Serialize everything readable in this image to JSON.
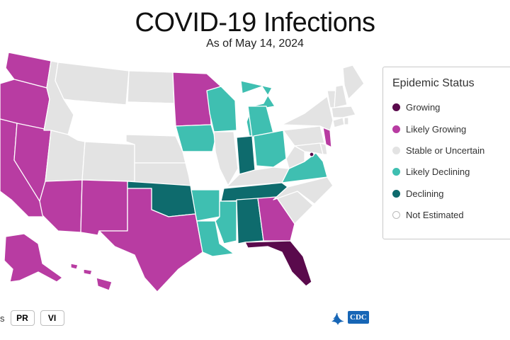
{
  "header": {
    "title": "COVID-19 Infections",
    "subtitle": "As of May 14, 2024"
  },
  "legend": {
    "title": "Epidemic Status",
    "items": [
      {
        "label": "Growing",
        "color": "#5a0a4c"
      },
      {
        "label": "Likely Growing",
        "color": "#b83ca2"
      },
      {
        "label": "Stable or Uncertain",
        "color": "#e3e3e3"
      },
      {
        "label": "Likely Declining",
        "color": "#3fbfb1"
      },
      {
        "label": "Declining",
        "color": "#0e6b6d"
      },
      {
        "label": "Not Estimated",
        "color": "#ffffff"
      }
    ]
  },
  "colors": {
    "growing": "#5a0a4c",
    "likely_growing": "#b83ca2",
    "stable": "#e3e3e3",
    "likely_declining": "#3fbfb1",
    "declining": "#0e6b6d",
    "not_estimated": "#ffffff"
  },
  "states": [
    {
      "name": "WA",
      "status": "likely_growing"
    },
    {
      "name": "OR",
      "status": "likely_growing"
    },
    {
      "name": "CA",
      "status": "likely_growing"
    },
    {
      "name": "NV",
      "status": "likely_growing"
    },
    {
      "name": "AZ",
      "status": "likely_growing"
    },
    {
      "name": "NM",
      "status": "likely_growing"
    },
    {
      "name": "TX",
      "status": "likely_growing"
    },
    {
      "name": "MN",
      "status": "likely_growing"
    },
    {
      "name": "GA",
      "status": "likely_growing"
    },
    {
      "name": "NJ",
      "status": "likely_growing"
    },
    {
      "name": "AK",
      "status": "likely_growing"
    },
    {
      "name": "HI",
      "status": "likely_growing"
    },
    {
      "name": "FL",
      "status": "growing"
    },
    {
      "name": "DC",
      "status": "growing"
    },
    {
      "name": "ID",
      "status": "stable"
    },
    {
      "name": "MT",
      "status": "stable"
    },
    {
      "name": "ND",
      "status": "stable"
    },
    {
      "name": "UT",
      "status": "stable"
    },
    {
      "name": "CO",
      "status": "stable"
    },
    {
      "name": "NE",
      "status": "stable"
    },
    {
      "name": "KS",
      "status": "stable"
    },
    {
      "name": "IL",
      "status": "stable"
    },
    {
      "name": "KY",
      "status": "stable"
    },
    {
      "name": "WV",
      "status": "stable"
    },
    {
      "name": "PA",
      "status": "stable"
    },
    {
      "name": "NY",
      "status": "stable"
    },
    {
      "name": "NC",
      "status": "stable"
    },
    {
      "name": "SC",
      "status": "stable"
    },
    {
      "name": "ME",
      "status": "stable"
    },
    {
      "name": "VT",
      "status": "stable"
    },
    {
      "name": "NH",
      "status": "stable"
    },
    {
      "name": "MA",
      "status": "stable"
    },
    {
      "name": "CT",
      "status": "stable"
    },
    {
      "name": "RI",
      "status": "stable"
    },
    {
      "name": "DE",
      "status": "stable"
    },
    {
      "name": "MD",
      "status": "stable"
    },
    {
      "name": "WY",
      "status": "not_estimated"
    },
    {
      "name": "SD",
      "status": "not_estimated"
    },
    {
      "name": "MO",
      "status": "not_estimated"
    },
    {
      "name": "WI",
      "status": "likely_declining"
    },
    {
      "name": "IA",
      "status": "likely_declining"
    },
    {
      "name": "MI",
      "status": "likely_declining"
    },
    {
      "name": "OH",
      "status": "likely_declining"
    },
    {
      "name": "VA",
      "status": "likely_declining"
    },
    {
      "name": "AR",
      "status": "likely_declining"
    },
    {
      "name": "MS",
      "status": "likely_declining"
    },
    {
      "name": "LA",
      "status": "likely_declining"
    },
    {
      "name": "OK",
      "status": "declining"
    },
    {
      "name": "IN",
      "status": "declining"
    },
    {
      "name": "TN",
      "status": "declining"
    },
    {
      "name": "AL",
      "status": "declining"
    }
  ],
  "territories": {
    "label_fragment": "s",
    "buttons": [
      "PR",
      "VI"
    ]
  },
  "logo": {
    "text": "CDC"
  }
}
